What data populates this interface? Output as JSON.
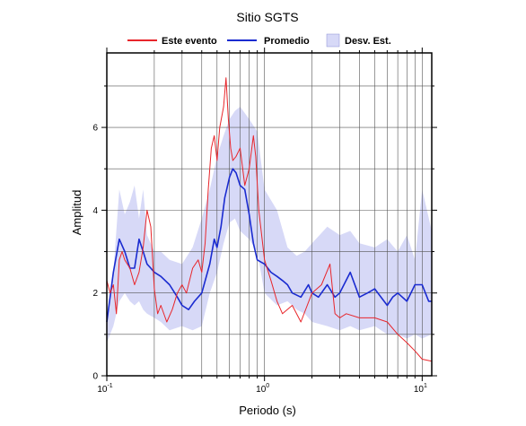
{
  "chart_data": {
    "type": "line",
    "title": "Sitio SGTS",
    "xlabel": "Periodo (s)",
    "ylabel": "Amplitud",
    "xscale": "log",
    "xlim": [
      0.1,
      11.5
    ],
    "ylim": [
      0,
      7.8
    ],
    "grid": true,
    "legend_position": "top",
    "x_ticks": [
      {
        "value": 0.1,
        "base": "10",
        "exp": "-1"
      },
      {
        "value": 1,
        "base": "10",
        "exp": "0"
      },
      {
        "value": 10,
        "base": "10",
        "exp": "1"
      }
    ],
    "y_ticks": [
      0,
      2,
      4,
      6
    ],
    "legend": [
      {
        "label": "Este evento",
        "kind": "line",
        "color": "#e8262b"
      },
      {
        "label": "Promedio",
        "kind": "line",
        "color": "#1a2bd0"
      },
      {
        "label": "Desv. Est.",
        "kind": "band",
        "color": "#d7d9f7"
      }
    ],
    "band": {
      "name": "Desv. Est.",
      "color": "#d7d9f7",
      "x": [
        0.1,
        0.11,
        0.12,
        0.13,
        0.14,
        0.15,
        0.16,
        0.17,
        0.18,
        0.2,
        0.22,
        0.25,
        0.3,
        0.35,
        0.4,
        0.45,
        0.5,
        0.55,
        0.6,
        0.65,
        0.7,
        0.8,
        0.9,
        1.0,
        1.2,
        1.4,
        1.6,
        1.8,
        2.0,
        2.5,
        3.0,
        3.5,
        4.0,
        5.0,
        6.0,
        7.0,
        8.0,
        9.0,
        10.0,
        11.5
      ],
      "upper": [
        1.2,
        2.5,
        4.5,
        3.9,
        4.2,
        4.6,
        3.8,
        4.5,
        3.4,
        3.0,
        3.0,
        2.8,
        2.7,
        3.1,
        3.8,
        4.5,
        5.3,
        5.8,
        6.2,
        6.4,
        6.5,
        6.2,
        5.9,
        4.5,
        4.0,
        3.1,
        2.9,
        3.0,
        3.2,
        3.6,
        3.4,
        3.5,
        3.2,
        3.1,
        3.3,
        3.0,
        3.4,
        2.8,
        4.5,
        3.5
      ],
      "lower": [
        0.8,
        1.2,
        1.8,
        2.0,
        1.8,
        1.7,
        1.8,
        1.6,
        1.5,
        1.4,
        1.3,
        1.1,
        1.2,
        1.1,
        1.2,
        2.0,
        2.5,
        3.2,
        3.7,
        3.8,
        3.5,
        3.3,
        3.0,
        2.0,
        1.7,
        1.8,
        1.6,
        1.5,
        1.3,
        1.2,
        1.1,
        1.2,
        1.1,
        1.2,
        1.0,
        1.0,
        0.9,
        1.0,
        0.9,
        1.0
      ]
    },
    "series": [
      {
        "name": "Promedio",
        "color": "#1a2bd0",
        "x": [
          0.1,
          0.11,
          0.12,
          0.13,
          0.14,
          0.15,
          0.16,
          0.17,
          0.18,
          0.19,
          0.2,
          0.22,
          0.25,
          0.28,
          0.3,
          0.33,
          0.36,
          0.4,
          0.45,
          0.48,
          0.5,
          0.53,
          0.56,
          0.6,
          0.63,
          0.66,
          0.7,
          0.75,
          0.8,
          0.85,
          0.9,
          1.0,
          1.1,
          1.2,
          1.3,
          1.4,
          1.5,
          1.7,
          1.9,
          2.0,
          2.2,
          2.5,
          2.8,
          3.0,
          3.5,
          4.0,
          4.5,
          5.0,
          6.0,
          6.5,
          7.0,
          8.0,
          9.0,
          10.0,
          11.0,
          11.5
        ],
        "y": [
          1.3,
          2.5,
          3.3,
          3.0,
          2.6,
          2.6,
          3.3,
          3.0,
          2.7,
          2.6,
          2.5,
          2.4,
          2.2,
          1.9,
          1.7,
          1.6,
          1.8,
          2.0,
          2.7,
          3.3,
          3.1,
          3.6,
          4.3,
          4.8,
          5.0,
          4.9,
          4.6,
          4.5,
          3.9,
          3.2,
          2.8,
          2.7,
          2.5,
          2.4,
          2.3,
          2.2,
          2.0,
          1.9,
          2.2,
          2.0,
          1.9,
          2.2,
          1.9,
          2.0,
          2.5,
          1.9,
          2.0,
          2.1,
          1.7,
          1.9,
          2.0,
          1.8,
          2.2,
          2.2,
          1.8,
          1.8
        ]
      },
      {
        "name": "Este evento",
        "color": "#e8262b",
        "x": [
          0.1,
          0.105,
          0.11,
          0.115,
          0.12,
          0.125,
          0.13,
          0.14,
          0.15,
          0.16,
          0.17,
          0.18,
          0.19,
          0.2,
          0.21,
          0.22,
          0.24,
          0.26,
          0.28,
          0.3,
          0.32,
          0.35,
          0.38,
          0.4,
          0.42,
          0.44,
          0.46,
          0.48,
          0.5,
          0.52,
          0.55,
          0.57,
          0.59,
          0.61,
          0.63,
          0.66,
          0.7,
          0.75,
          0.8,
          0.85,
          0.88,
          0.92,
          1.0,
          1.1,
          1.2,
          1.3,
          1.5,
          1.7,
          2.0,
          2.3,
          2.6,
          2.8,
          3.0,
          3.3,
          4.0,
          5.0,
          6.0,
          7.0,
          8.0,
          9.0,
          10.0,
          11.5
        ],
        "y": [
          2.3,
          2.0,
          2.2,
          1.5,
          2.8,
          3.0,
          2.8,
          2.6,
          2.2,
          2.5,
          3.1,
          4.0,
          3.6,
          2.1,
          1.5,
          1.7,
          1.3,
          1.6,
          2.0,
          2.2,
          2.0,
          2.6,
          2.8,
          2.5,
          3.2,
          4.5,
          5.5,
          5.8,
          5.2,
          6.0,
          6.5,
          7.2,
          6.2,
          5.5,
          5.2,
          5.3,
          5.5,
          4.6,
          5.0,
          5.8,
          5.3,
          4.0,
          2.8,
          2.3,
          1.8,
          1.5,
          1.7,
          1.3,
          2.0,
          2.2,
          2.7,
          1.5,
          1.4,
          1.5,
          1.4,
          1.4,
          1.3,
          1.0,
          0.8,
          0.6,
          0.4,
          0.35
        ]
      }
    ]
  }
}
